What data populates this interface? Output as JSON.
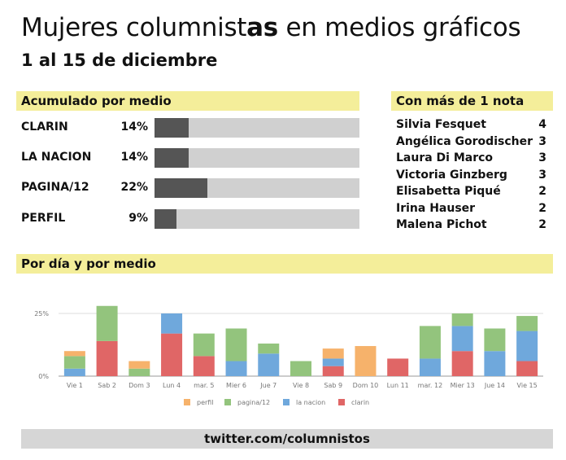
{
  "title_part1": "Mujeres columnist",
  "title_bold": "as",
  "title_part2": " en medios gráficos",
  "subtitle": "1 al 15 de diciembre",
  "section_medio": "Acumulado por medio",
  "section_nota": "Con más de 1 nota",
  "section_dia": "Por día y por medio",
  "medios": [
    {
      "name": "CLARIN",
      "pct_label": "14%",
      "value": 14
    },
    {
      "name": "LA NACION",
      "pct_label": "14%",
      "value": 14
    },
    {
      "name": "PAGINA/12",
      "pct_label": "22%",
      "value": 22
    },
    {
      "name": "PERFIL",
      "pct_label": "9%",
      "value": 9
    }
  ],
  "columnistas": [
    {
      "name": "Silvia Fesquet",
      "count": "4"
    },
    {
      "name": "Angélica Gorodischer",
      "count": "3"
    },
    {
      "name": "Laura Di Marco",
      "count": "3"
    },
    {
      "name": "Victoria Ginzberg",
      "count": "3"
    },
    {
      "name": "Elisabetta Piqué",
      "count": "2"
    },
    {
      "name": "Irina Hauser",
      "count": "2"
    },
    {
      "name": "Malena Pichot",
      "count": "2"
    }
  ],
  "footer": "twitter.com/columnistos",
  "colors": {
    "perfil": "#f6b26b",
    "pagina12": "#93c47d",
    "lanacion": "#6fa8dc",
    "clarin": "#e06666",
    "band": "#f4ee9a",
    "bar": "#555555"
  },
  "chart_data": {
    "type": "bar",
    "stacked": true,
    "categories": [
      "Vie 1",
      "Sab 2",
      "Dom 3",
      "Lun 4",
      "mar. 5",
      "Mier 6",
      "Jue 7",
      "Vie 8",
      "Sab 9",
      "Dom 10",
      "Lun 11",
      "mar. 12",
      "Mier 13",
      "Jue 14",
      "Vie 15"
    ],
    "series": [
      {
        "name": "clarin",
        "color": "#e06666",
        "values": [
          0,
          14,
          0,
          17,
          8,
          0,
          0,
          0,
          4,
          0,
          7,
          0,
          10,
          0,
          6
        ]
      },
      {
        "name": "la nacion",
        "color": "#6fa8dc",
        "values": [
          3,
          0,
          0,
          8,
          0,
          6,
          9,
          0,
          3,
          0,
          0,
          7,
          10,
          10,
          12
        ]
      },
      {
        "name": "pagina/12",
        "color": "#93c47d",
        "values": [
          5,
          14,
          3,
          0,
          9,
          13,
          4,
          6,
          0,
          0,
          0,
          13,
          5,
          9,
          6
        ]
      },
      {
        "name": "perfil",
        "color": "#f6b26b",
        "values": [
          2,
          0,
          3,
          0,
          0,
          0,
          0,
          0,
          4,
          12,
          0,
          0,
          0,
          0,
          0
        ]
      }
    ],
    "legend_order": [
      "perfil",
      "pagina/12",
      "la nacion",
      "clarin"
    ],
    "y_ticks": [
      {
        "value": 0,
        "label": "0%"
      },
      {
        "value": 25,
        "label": "25%"
      }
    ],
    "ylim": [
      0,
      30
    ],
    "legend_position": "bottom"
  }
}
